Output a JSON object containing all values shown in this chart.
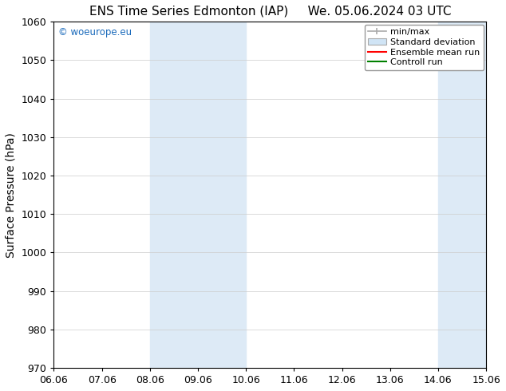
{
  "title": "ENS Time Series Edmonton (IAP)     We. 05.06.2024 03 UTC",
  "ylabel": "Surface Pressure (hPa)",
  "ylim": [
    970,
    1060
  ],
  "yticks": [
    970,
    980,
    990,
    1000,
    1010,
    1020,
    1030,
    1040,
    1050,
    1060
  ],
  "xlim": [
    0,
    9
  ],
  "xtick_labels": [
    "06.06",
    "07.06",
    "08.06",
    "09.06",
    "10.06",
    "11.06",
    "12.06",
    "13.06",
    "14.06",
    "15.06"
  ],
  "xtick_positions": [
    0,
    1,
    2,
    3,
    4,
    5,
    6,
    7,
    8,
    9
  ],
  "shaded_regions": [
    {
      "xmin": 2,
      "xmax": 4,
      "color": "#ddeaf6"
    },
    {
      "xmin": 8,
      "xmax": 9,
      "color": "#ddeaf6"
    }
  ],
  "watermark_text": "© woeurope.eu",
  "watermark_color": "#1a6abb",
  "legend_entries": [
    {
      "label": "min/max",
      "type": "minmax",
      "color": "#aaaaaa"
    },
    {
      "label": "Standard deviation",
      "type": "patch",
      "color": "#d0e4f5"
    },
    {
      "label": "Ensemble mean run",
      "type": "line",
      "color": "red"
    },
    {
      "label": "Controll run",
      "type": "line",
      "color": "green"
    }
  ],
  "bg_color": "#ffffff",
  "spine_color": "#000000",
  "grid_color": "#cccccc",
  "title_fontsize": 11,
  "axis_label_fontsize": 10,
  "tick_fontsize": 9,
  "legend_fontsize": 8
}
